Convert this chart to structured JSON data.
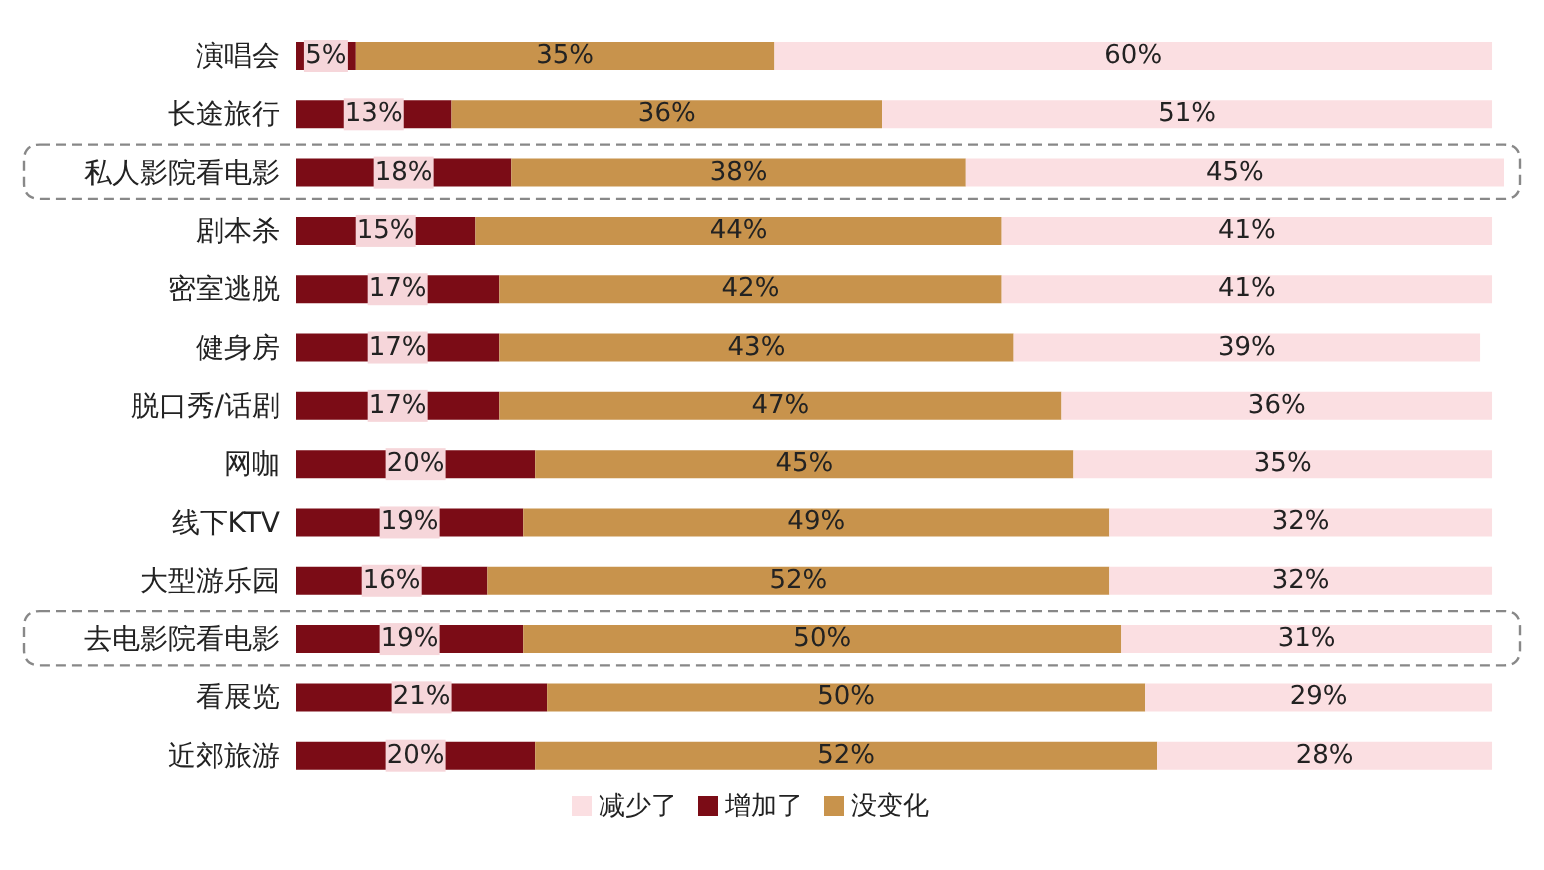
{
  "chart_data": {
    "type": "bar",
    "orientation": "horizontal",
    "stacked": true,
    "categories": [
      "演唱会",
      "长途旅行",
      "私人影院看电影",
      "剧本杀",
      "密室逃脱",
      "健身房",
      "脱口秀/话剧",
      "网咖",
      "线下KTV",
      "大型游乐园",
      "去电影院看电影",
      "看展览",
      "近郊旅游"
    ],
    "series": [
      {
        "name": "增加了",
        "color": "#7b0c16",
        "values": [
          5,
          13,
          18,
          15,
          17,
          17,
          17,
          20,
          19,
          16,
          19,
          21,
          20
        ],
        "value_labels": [
          "5%",
          "13%",
          "18%",
          "15%",
          "17%",
          "17%",
          "17%",
          "20%",
          "19%",
          "16%",
          "19%",
          "21%",
          "20%"
        ]
      },
      {
        "name": "没变化",
        "color": "#c8934c",
        "values": [
          35,
          36,
          38,
          44,
          42,
          43,
          47,
          45,
          49,
          52,
          50,
          50,
          52
        ],
        "value_labels": [
          "35%",
          "36%",
          "38%",
          "44%",
          "42%",
          "43%",
          "47%",
          "45%",
          "49%",
          "52%",
          "50%",
          "50%",
          "52%"
        ]
      },
      {
        "name": "减少了",
        "color": "#fbdfe2",
        "values": [
          60,
          51,
          45,
          41,
          41,
          39,
          36,
          35,
          32,
          32,
          31,
          29,
          28
        ],
        "value_labels": [
          "60%",
          "51%",
          "45%",
          "41%",
          "41%",
          "39%",
          "36%",
          "35%",
          "32%",
          "32%",
          "31%",
          "29%",
          "28%"
        ]
      }
    ],
    "tick_labels": "y",
    "legend": "bottom"
  }
}
